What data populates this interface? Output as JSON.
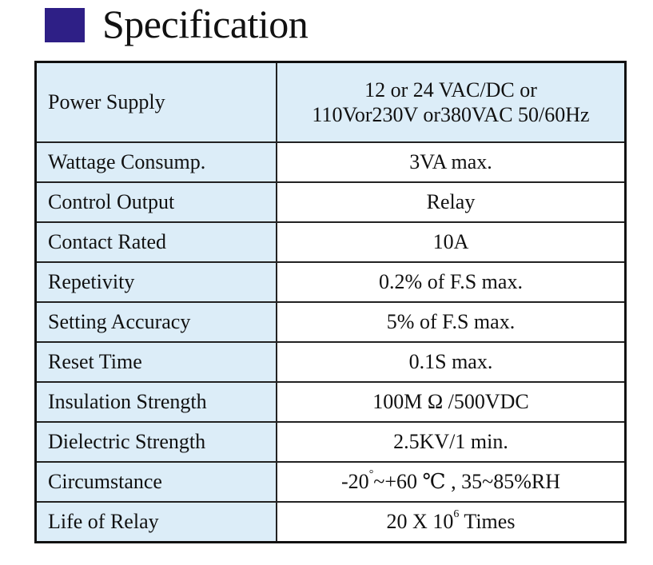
{
  "heading": {
    "title": "Specification",
    "accent_color": "#2e1f86"
  },
  "table": {
    "shade_color": "#dcedf8",
    "rows": [
      {
        "label": "Power Supply",
        "value_lines": [
          "12 or 24 VAC/DC or",
          "110Vor230V or380VAC 50/60Hz"
        ],
        "shaded": true
      },
      {
        "label": "Wattage Consump.",
        "value": "3VA max.",
        "shaded": true
      },
      {
        "label": "Control Output",
        "value": "Relay",
        "shaded": true
      },
      {
        "label": "Contact Rated",
        "value": "10A",
        "shaded": true
      },
      {
        "label": "Repetivity",
        "value": "0.2% of F.S max.",
        "shaded": true
      },
      {
        "label": "Setting Accuracy",
        "value": "5% of F.S max.",
        "shaded": true
      },
      {
        "label": "Reset Time",
        "value": "0.1S max.",
        "shaded": true
      },
      {
        "label": "Insulation Strength",
        "value": "100M Ω /500VDC",
        "shaded": true
      },
      {
        "label": "Dielectric Strength",
        "value": "2.5KV/1 min.",
        "shaded": true
      },
      {
        "label": "Circumstance",
        "value_parts": {
          "before": "-20",
          "deg1": "°",
          "mid": "~+60 ",
          "unit": "℃",
          "after": " , 35~85%RH"
        },
        "shaded": true
      },
      {
        "label": "Life of Relay",
        "value_parts": {
          "before": "20 X 10",
          "exp": "6",
          "after": " Times"
        },
        "shaded": true
      }
    ]
  }
}
